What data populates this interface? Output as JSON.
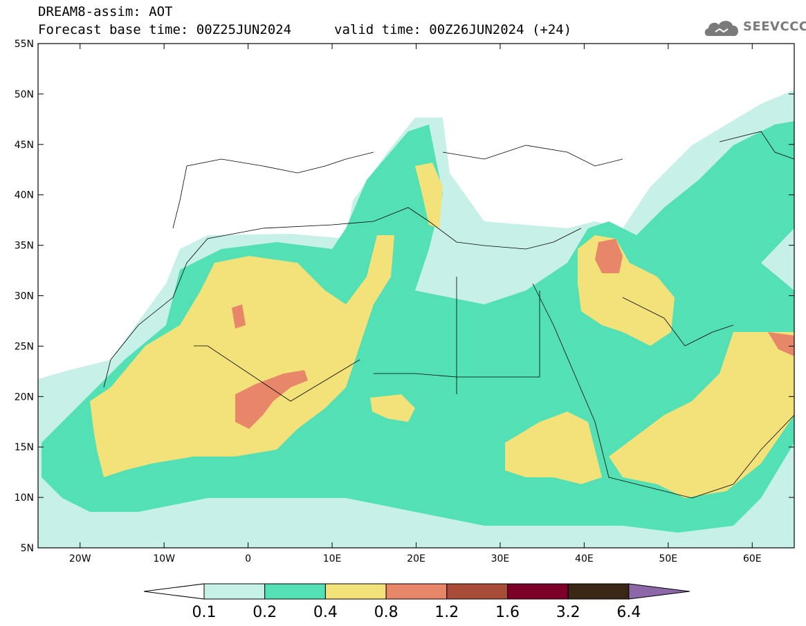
{
  "header": {
    "product": "DREAM8-assim: AOT",
    "base_time": "Forecast base time: 00Z25JUN2024",
    "valid_time": "valid time: 00Z26JUN2024 (+24)"
  },
  "logo": {
    "text": "SEEVCCC",
    "icon": "cloud-icon"
  },
  "map": {
    "lat_ticks": [
      "55N",
      "50N",
      "45N",
      "40N",
      "35N",
      "30N",
      "25N",
      "20N",
      "15N",
      "10N",
      "5N"
    ],
    "lon_ticks": [
      "20W",
      "10W",
      "0",
      "10E",
      "20E",
      "30E",
      "40E",
      "50E",
      "60E"
    ],
    "extent": {
      "lon_min": -25,
      "lon_max": 65,
      "lat_min": 5,
      "lat_max": 55
    }
  },
  "colorbar": {
    "labels": [
      "0.1",
      "0.2",
      "0.4",
      "0.8",
      "1.2",
      "1.6",
      "3.2",
      "6.4"
    ],
    "colors": [
      "#ffffff",
      "#c6f0e8",
      "#52e0b4",
      "#f3e17a",
      "#e8866a",
      "#a84b38",
      "#7a0027",
      "#3a2614",
      "#8d68a8"
    ]
  }
}
